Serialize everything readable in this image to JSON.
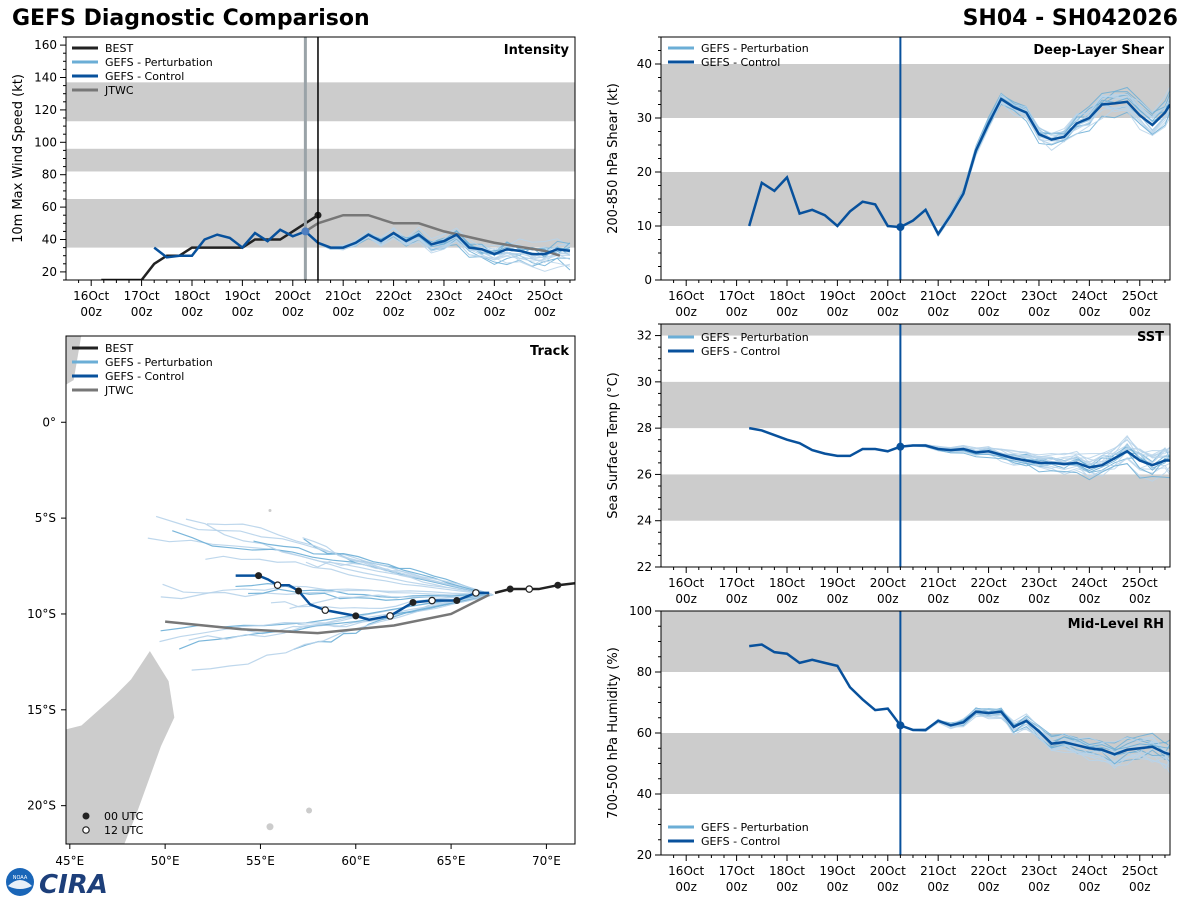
{
  "header": {
    "title": "GEFS Diagnostic Comparison",
    "storm_id": "SH04 - SH042026"
  },
  "colors": {
    "best": "#222222",
    "perturbation": "#6baed6",
    "control": "#08519c",
    "jtwc": "#777777",
    "band": "#cccccc",
    "land": "#cccccc"
  },
  "time_axis": {
    "day_labels": [
      "16Oct",
      "17Oct",
      "18Oct",
      "19Oct",
      "20Oct",
      "21Oct",
      "22Oct",
      "23Oct",
      "24Oct",
      "25Oct"
    ],
    "hour_label": "00z",
    "initial_time_day": 20.25
  },
  "legends": {
    "best": "BEST",
    "perturbation": "GEFS - Perturbation",
    "control": "GEFS - Control",
    "jtwc": "JTWC",
    "utc00": "00 UTC",
    "utc12": "12 UTC"
  },
  "logo": {
    "text": "CIRA",
    "seal": "NOAA"
  },
  "chart_data": [
    {
      "id": "intensity",
      "type": "line",
      "title": "Intensity",
      "ylabel": "10m Max Wind Speed (kt)",
      "xlim": [
        15.5,
        25.6
      ],
      "ylim": [
        15,
        165
      ],
      "yticks": [
        20,
        40,
        60,
        80,
        100,
        120,
        140,
        160
      ],
      "bands": [
        [
          35,
          65
        ],
        [
          82,
          96
        ],
        [
          113,
          137
        ]
      ],
      "best_time_line": 20.5,
      "series": [
        {
          "name": "BEST",
          "x": [
            16.2,
            17.0,
            17.25,
            17.5,
            17.75,
            18.0,
            18.25,
            18.5,
            18.75,
            19.0,
            19.25,
            19.5,
            19.75,
            20.0,
            20.25,
            20.5
          ],
          "values": [
            15,
            15,
            25,
            30,
            30,
            35,
            35,
            35,
            35,
            35,
            40,
            40,
            40,
            45,
            50,
            55
          ]
        },
        {
          "name": "GEFS - Control",
          "x": [
            17.25,
            17.5,
            17.75,
            18.0,
            18.25,
            18.5,
            18.75,
            19.0,
            19.25,
            19.5,
            19.75,
            20.0,
            20.25,
            20.5,
            20.75,
            21.0,
            21.25,
            21.5,
            21.75,
            22.0,
            22.25,
            22.5,
            22.75,
            23.0,
            23.25,
            23.5,
            23.75,
            24.0,
            24.25,
            24.5,
            24.75,
            25.0,
            25.25,
            25.5
          ],
          "values": [
            35,
            29,
            30,
            30,
            40,
            43,
            41,
            35,
            44,
            39,
            46,
            42,
            45,
            38,
            35,
            35,
            38,
            43,
            39,
            44,
            39,
            43,
            37,
            39,
            43,
            35,
            34,
            31,
            34,
            33,
            31,
            31,
            34,
            33
          ]
        },
        {
          "name": "JTWC",
          "x": [
            20.25,
            20.5,
            21.0,
            21.5,
            22.0,
            22.5,
            23.0,
            24.0,
            25.0,
            25.3
          ],
          "values": [
            45,
            50,
            55,
            55,
            50,
            50,
            45,
            38,
            33,
            30
          ]
        }
      ]
    },
    {
      "id": "shear",
      "type": "line",
      "title": "Deep-Layer Shear",
      "ylabel": "200-850 hPa Shear (kt)",
      "xlim": [
        15.5,
        25.6
      ],
      "ylim": [
        0,
        45
      ],
      "yticks": [
        0,
        10,
        20,
        30,
        40
      ],
      "bands": [
        [
          10,
          20
        ],
        [
          30,
          40
        ]
      ],
      "series": [
        {
          "name": "GEFS - Control",
          "x": [
            17.25,
            17.5,
            17.75,
            18.0,
            18.25,
            18.5,
            18.75,
            19.0,
            19.25,
            19.5,
            19.75,
            20.0,
            20.25,
            20.5,
            20.75,
            21.0,
            21.25,
            21.5,
            21.75,
            22.0,
            22.25,
            22.5,
            22.75,
            23.0,
            23.25,
            23.5,
            23.75,
            24.0,
            24.25,
            24.5,
            24.75,
            25.0,
            25.25,
            25.5,
            25.6
          ],
          "values": [
            10,
            18,
            16.5,
            19,
            12.3,
            13,
            12,
            10,
            12.7,
            14.5,
            14,
            10,
            9.8,
            11,
            13,
            8.5,
            12,
            16,
            24,
            29,
            33.5,
            32,
            31,
            27,
            26,
            26.5,
            29,
            30,
            32.5,
            32.7,
            33,
            30.5,
            28.7,
            31,
            32.5
          ]
        }
      ]
    },
    {
      "id": "sst",
      "type": "line",
      "title": "SST",
      "ylabel": "Sea Surface Temp (°C)",
      "xlim": [
        15.5,
        25.6
      ],
      "ylim": [
        22,
        32.5
      ],
      "yticks": [
        22,
        24,
        26,
        28,
        30,
        32
      ],
      "bands": [
        [
          24,
          26
        ],
        [
          28,
          30
        ],
        [
          32,
          34
        ]
      ],
      "series": [
        {
          "name": "GEFS - Control",
          "x": [
            17.25,
            17.5,
            17.75,
            18.0,
            18.25,
            18.5,
            18.75,
            19.0,
            19.25,
            19.5,
            19.75,
            20.0,
            20.25,
            20.5,
            20.75,
            21.0,
            21.25,
            21.5,
            21.75,
            22.0,
            22.25,
            22.5,
            22.75,
            23.0,
            23.25,
            23.5,
            23.75,
            24.0,
            24.25,
            24.5,
            24.75,
            25.0,
            25.25,
            25.5,
            25.6
          ],
          "values": [
            28,
            27.9,
            27.7,
            27.5,
            27.35,
            27.05,
            26.9,
            26.8,
            26.8,
            27.1,
            27.1,
            27.0,
            27.2,
            27.25,
            27.25,
            27.1,
            27.05,
            27.1,
            26.95,
            27.0,
            26.85,
            26.7,
            26.6,
            26.5,
            26.5,
            26.45,
            26.5,
            26.3,
            26.4,
            26.7,
            27.0,
            26.6,
            26.4,
            26.6,
            26.6
          ]
        }
      ]
    },
    {
      "id": "rh",
      "type": "line",
      "title": "Mid-Level RH",
      "ylabel": "700-500 hPa Humidity (%)",
      "xlim": [
        15.5,
        25.6
      ],
      "ylim": [
        20,
        100
      ],
      "yticks": [
        20,
        40,
        60,
        80,
        100
      ],
      "bands": [
        [
          40,
          60
        ],
        [
          80,
          100
        ]
      ],
      "series": [
        {
          "name": "GEFS - Control",
          "x": [
            17.25,
            17.5,
            17.75,
            18.0,
            18.25,
            18.5,
            18.75,
            19.0,
            19.25,
            19.5,
            19.75,
            20.0,
            20.25,
            20.5,
            20.75,
            21.0,
            21.25,
            21.5,
            21.75,
            22.0,
            22.25,
            22.5,
            22.75,
            23.0,
            23.25,
            23.5,
            23.75,
            24.0,
            24.25,
            24.5,
            24.75,
            25.0,
            25.25,
            25.5,
            25.6
          ],
          "values": [
            88.5,
            89,
            86.5,
            86,
            83,
            84,
            83,
            82,
            75,
            71,
            67.5,
            68,
            62.5,
            61,
            61,
            64,
            62.5,
            63.5,
            67,
            66.5,
            67,
            62,
            64,
            60.5,
            56.5,
            57,
            56,
            55,
            54.5,
            53,
            54.5,
            55,
            55.5,
            53.5,
            53
          ]
        }
      ]
    },
    {
      "id": "track",
      "type": "line",
      "title": "Track",
      "xlim": [
        44.8,
        71.5
      ],
      "ylim": [
        -22,
        4.5
      ],
      "xticks": [
        45,
        50,
        55,
        60,
        65,
        70
      ],
      "xtick_labels": [
        "45°E",
        "50°E",
        "55°E",
        "60°E",
        "65°E",
        "70°E"
      ],
      "yticks": [
        0,
        -5,
        -10,
        -15,
        -20
      ],
      "ytick_labels": [
        "0°",
        "5°S",
        "10°S",
        "15°S",
        "20°S"
      ],
      "series": [
        {
          "name": "BEST",
          "lon": [
            71.5,
            70.6,
            69.6,
            68.1,
            67.3
          ],
          "lat": [
            -8.4,
            -8.5,
            -8.7,
            -8.7,
            -8.9
          ]
        },
        {
          "name": "GEFS - Control",
          "lon": [
            67.0,
            66.3,
            65.3,
            64.0,
            63.0,
            61.8,
            60.7,
            60.0,
            58.4,
            57.6,
            57.0,
            56.5,
            55.9,
            55.4,
            54.9,
            54.3,
            53.7
          ],
          "lat": [
            -8.9,
            -8.9,
            -9.3,
            -9.3,
            -9.4,
            -10.1,
            -10.3,
            -10.1,
            -9.8,
            -9.5,
            -8.8,
            -8.5,
            -8.5,
            -8.2,
            -8.0,
            -8.0,
            -8.0
          ]
        },
        {
          "name": "JTWC",
          "lon": [
            67.0,
            65.0,
            62.0,
            58.0,
            54.0,
            50.0
          ],
          "lat": [
            -9.0,
            -10.0,
            -10.6,
            -11.0,
            -10.8,
            -10.4
          ]
        }
      ],
      "markers_00utc": [
        [
          68.1,
          -8.7
        ],
        [
          70.6,
          -8.5
        ],
        [
          65.3,
          -9.3
        ],
        [
          63.0,
          -9.4
        ],
        [
          60.0,
          -10.1
        ],
        [
          57.0,
          -8.8
        ],
        [
          54.9,
          -8.0
        ]
      ],
      "markers_12utc": [
        [
          69.1,
          -8.7
        ],
        [
          66.3,
          -8.9
        ],
        [
          64.0,
          -9.3
        ],
        [
          61.8,
          -10.1
        ],
        [
          58.4,
          -9.8
        ],
        [
          55.9,
          -8.5
        ]
      ]
    }
  ]
}
